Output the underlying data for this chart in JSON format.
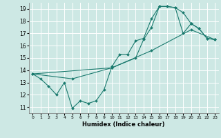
{
  "xlabel": "Humidex (Indice chaleur)",
  "background_color": "#cde8e4",
  "grid_color": "#ffffff",
  "line_color": "#1a7a6e",
  "xlim": [
    -0.5,
    23.5
  ],
  "ylim": [
    10.5,
    19.5
  ],
  "xticks": [
    0,
    1,
    2,
    3,
    4,
    5,
    6,
    7,
    8,
    9,
    10,
    11,
    12,
    13,
    14,
    15,
    16,
    17,
    18,
    19,
    20,
    21,
    22,
    23
  ],
  "yticks": [
    11,
    12,
    13,
    14,
    15,
    16,
    17,
    18,
    19
  ],
  "series": [
    {
      "x": [
        0,
        1,
        2,
        3,
        4,
        5,
        6,
        7,
        8,
        9,
        10,
        11,
        12,
        13,
        14,
        15,
        16,
        17,
        18,
        19,
        20,
        21,
        22,
        23
      ],
      "y": [
        13.7,
        13.3,
        12.7,
        12.0,
        13.0,
        10.9,
        11.5,
        11.3,
        11.5,
        12.4,
        14.3,
        15.3,
        15.3,
        16.4,
        16.6,
        18.2,
        19.2,
        19.2,
        19.1,
        18.7,
        17.8,
        17.4,
        16.6,
        16.5
      ]
    },
    {
      "x": [
        0,
        5,
        10,
        15,
        20,
        23
      ],
      "y": [
        13.7,
        13.3,
        14.2,
        15.6,
        17.3,
        16.5
      ]
    },
    {
      "x": [
        0,
        10,
        13,
        14,
        15,
        16,
        17,
        18,
        19,
        20,
        21,
        22,
        23
      ],
      "y": [
        13.7,
        14.2,
        15.0,
        16.5,
        17.5,
        19.2,
        19.2,
        19.1,
        17.0,
        17.8,
        17.4,
        16.6,
        16.5
      ]
    }
  ]
}
